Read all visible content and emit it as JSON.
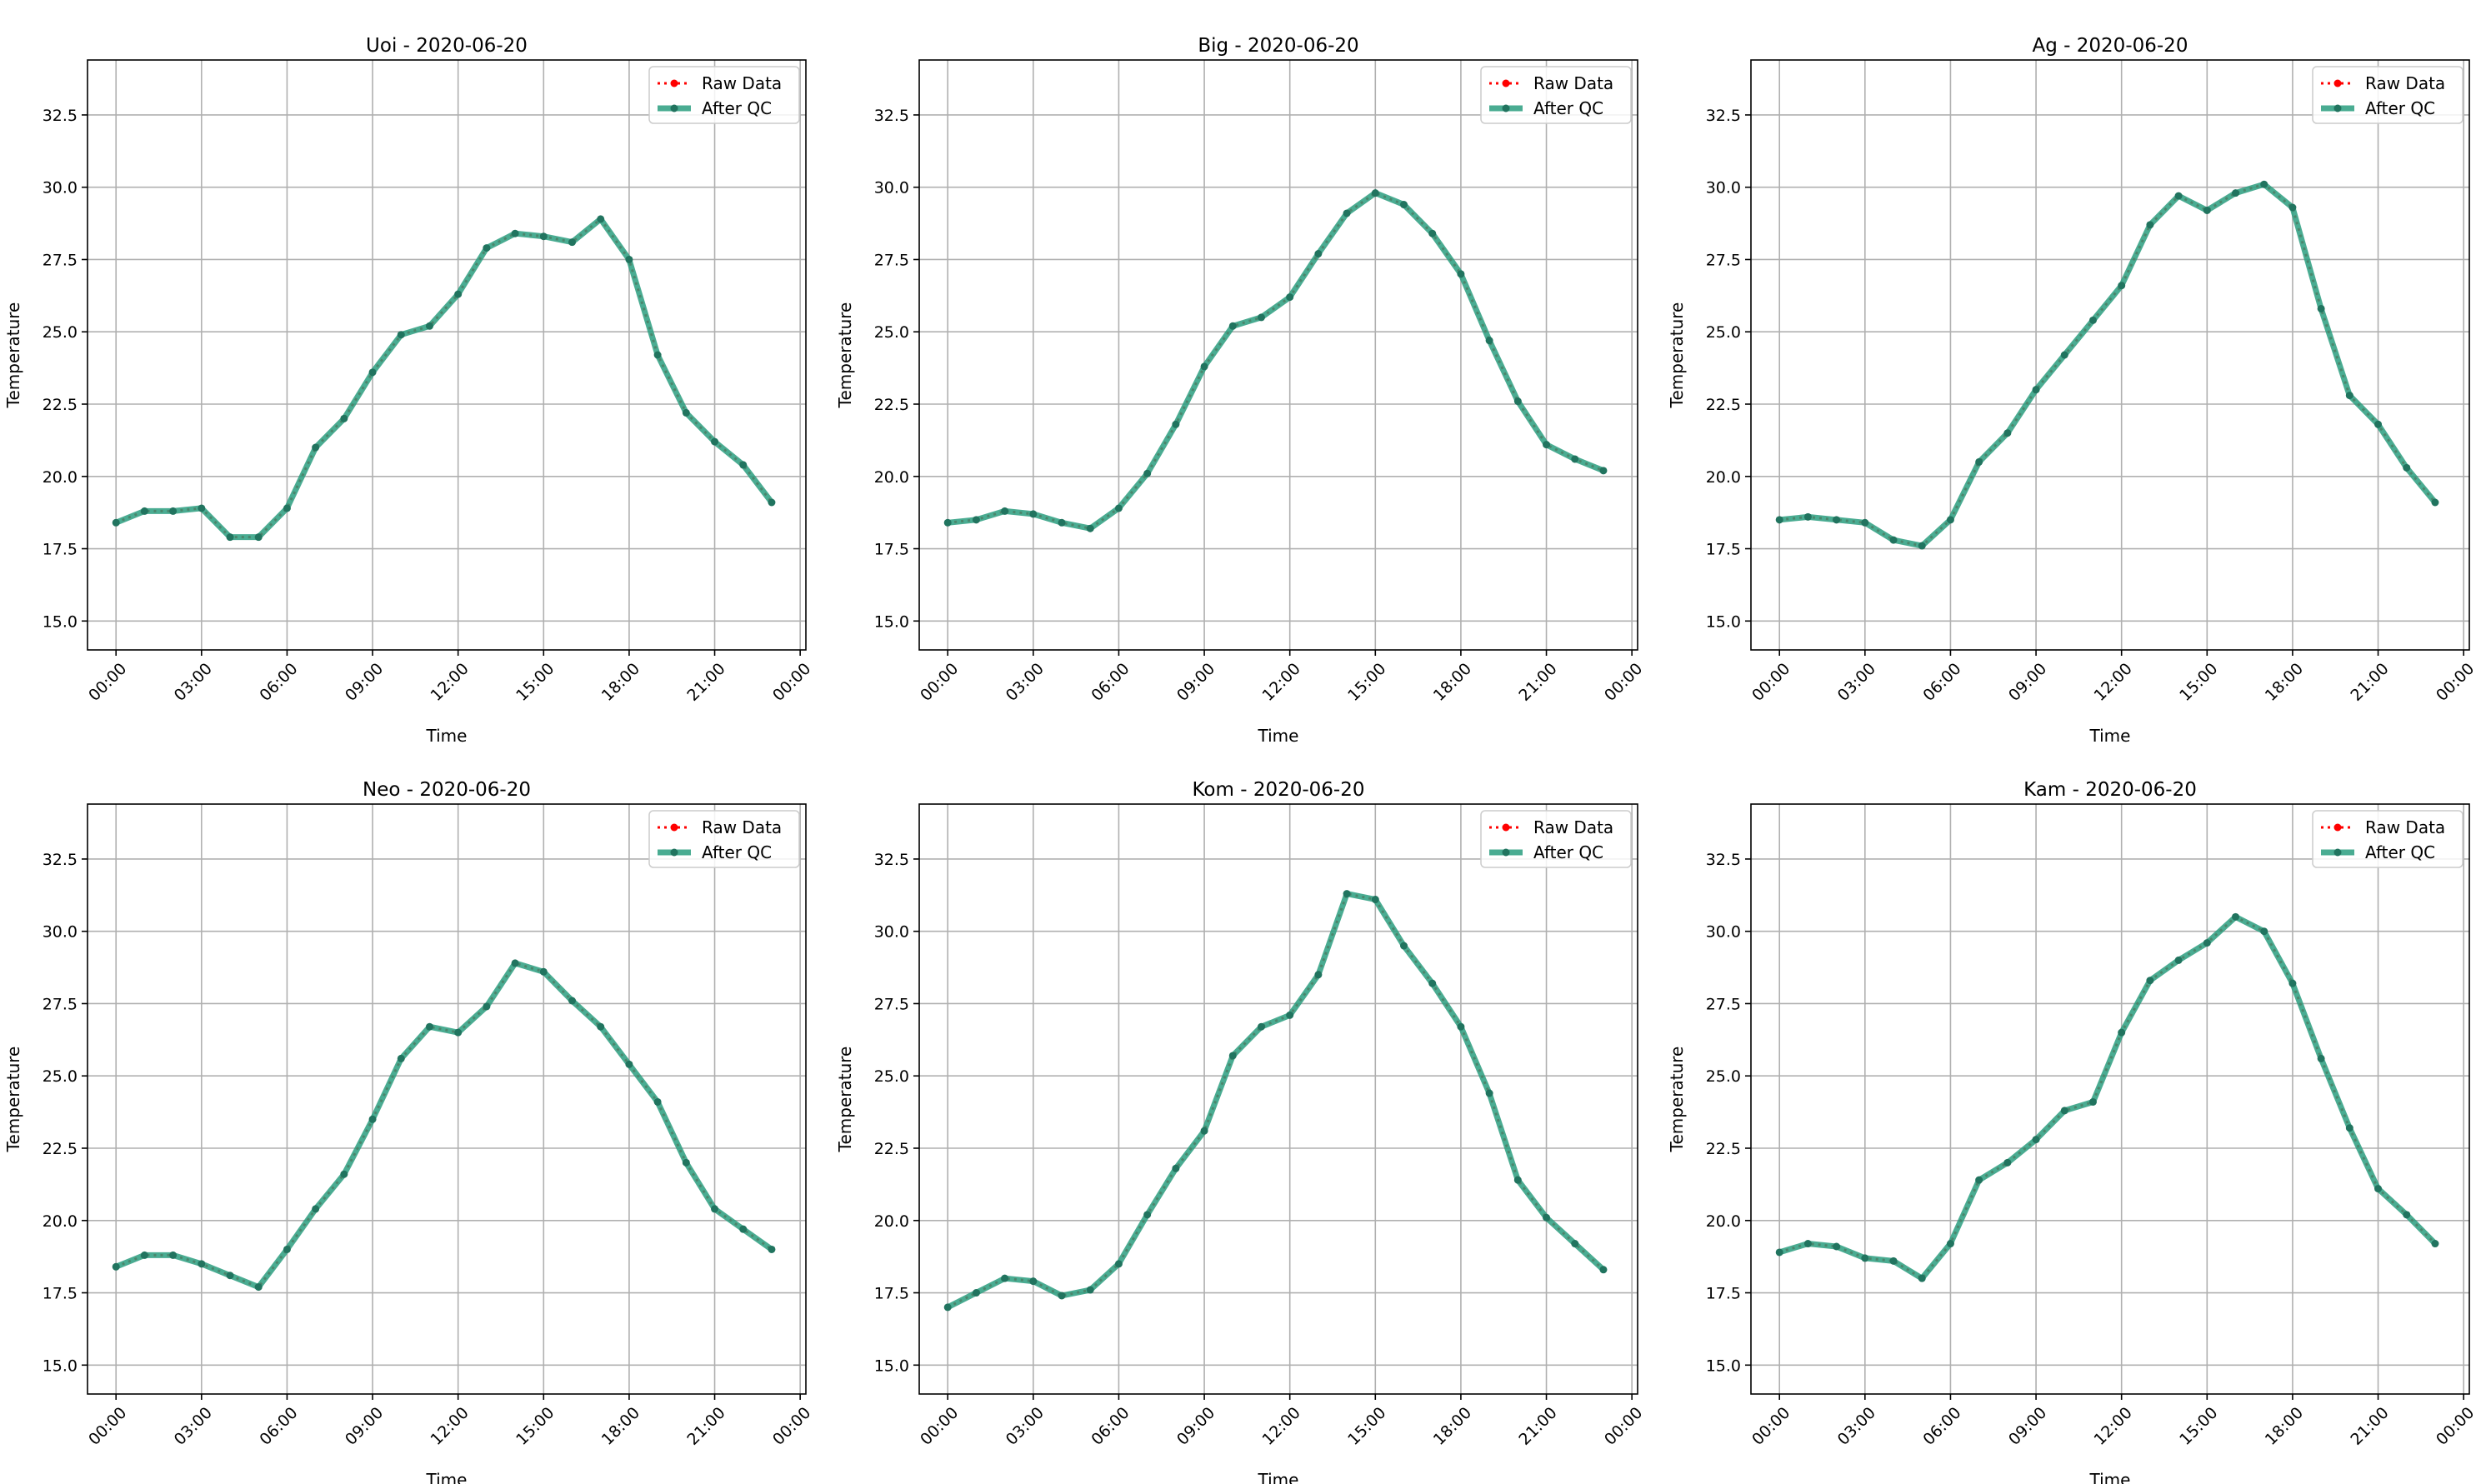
{
  "chart_data": [
    {
      "type": "line",
      "title": "Uoi - 2020-06-20",
      "xlabel": "Time",
      "ylabel": "Temperature",
      "ylim": [
        14.0,
        34.4
      ],
      "xlim": [
        -1.0,
        24.2
      ],
      "yticks": [
        "15.0",
        "17.5",
        "20.0",
        "22.5",
        "25.0",
        "27.5",
        "30.0",
        "32.5"
      ],
      "xticks": [
        "00:00",
        "03:00",
        "06:00",
        "09:00",
        "12:00",
        "15:00",
        "18:00",
        "21:00",
        "00:00"
      ],
      "grid": true,
      "legend_position": "top-right",
      "x": [
        0,
        1,
        2,
        3,
        4,
        5,
        6,
        7,
        8,
        9,
        10,
        11,
        12,
        13,
        14,
        15,
        16,
        17,
        18,
        19,
        20,
        21,
        22,
        23
      ],
      "series": [
        {
          "name": "Raw Data",
          "color": "#ff0000",
          "values": [
            18.4,
            18.8,
            18.8,
            18.9,
            17.9,
            17.9,
            18.9,
            21.0,
            22.0,
            23.6,
            24.9,
            25.2,
            26.3,
            27.9,
            28.4,
            28.3,
            28.1,
            28.9,
            27.5,
            24.2,
            22.2,
            21.2,
            20.4,
            19.1
          ]
        },
        {
          "name": "After QC",
          "color": "#2a9d7f",
          "values": [
            18.4,
            18.8,
            18.8,
            18.9,
            17.9,
            17.9,
            18.9,
            21.0,
            22.0,
            23.6,
            24.9,
            25.2,
            26.3,
            27.9,
            28.4,
            28.3,
            28.1,
            28.9,
            27.5,
            24.2,
            22.2,
            21.2,
            20.4,
            19.1
          ]
        }
      ]
    },
    {
      "type": "line",
      "title": "Big - 2020-06-20",
      "xlabel": "Time",
      "ylabel": "Temperature",
      "ylim": [
        14.0,
        34.4
      ],
      "xlim": [
        -1.0,
        24.2
      ],
      "yticks": [
        "15.0",
        "17.5",
        "20.0",
        "22.5",
        "25.0",
        "27.5",
        "30.0",
        "32.5"
      ],
      "xticks": [
        "00:00",
        "03:00",
        "06:00",
        "09:00",
        "12:00",
        "15:00",
        "18:00",
        "21:00",
        "00:00"
      ],
      "grid": true,
      "legend_position": "top-right",
      "x": [
        0,
        1,
        2,
        3,
        4,
        5,
        6,
        7,
        8,
        9,
        10,
        11,
        12,
        13,
        14,
        15,
        16,
        17,
        18,
        19,
        20,
        21,
        22,
        23
      ],
      "series": [
        {
          "name": "Raw Data",
          "color": "#ff0000",
          "values": [
            18.4,
            18.5,
            18.8,
            18.7,
            18.4,
            18.2,
            18.9,
            20.1,
            21.8,
            23.8,
            25.2,
            25.5,
            26.2,
            27.7,
            29.1,
            29.8,
            29.4,
            28.4,
            27.0,
            24.7,
            22.6,
            21.1,
            20.6,
            20.2
          ]
        },
        {
          "name": "After QC",
          "color": "#2a9d7f",
          "values": [
            18.4,
            18.5,
            18.8,
            18.7,
            18.4,
            18.2,
            18.9,
            20.1,
            21.8,
            23.8,
            25.2,
            25.5,
            26.2,
            27.7,
            29.1,
            29.8,
            29.4,
            28.4,
            27.0,
            24.7,
            22.6,
            21.1,
            20.6,
            20.2
          ]
        }
      ]
    },
    {
      "type": "line",
      "title": "Ag - 2020-06-20",
      "xlabel": "Time",
      "ylabel": "Temperature",
      "ylim": [
        14.0,
        34.4
      ],
      "xlim": [
        -1.0,
        24.2
      ],
      "yticks": [
        "15.0",
        "17.5",
        "20.0",
        "22.5",
        "25.0",
        "27.5",
        "30.0",
        "32.5"
      ],
      "xticks": [
        "00:00",
        "03:00",
        "06:00",
        "09:00",
        "12:00",
        "15:00",
        "18:00",
        "21:00",
        "00:00"
      ],
      "grid": true,
      "legend_position": "top-right",
      "x": [
        0,
        1,
        2,
        3,
        4,
        5,
        6,
        7,
        8,
        9,
        10,
        11,
        12,
        13,
        14,
        15,
        16,
        17,
        18,
        19,
        20,
        21,
        22,
        23
      ],
      "series": [
        {
          "name": "Raw Data",
          "color": "#ff0000",
          "values": [
            18.5,
            18.6,
            18.5,
            18.4,
            17.8,
            17.6,
            18.5,
            20.5,
            21.5,
            23.0,
            24.2,
            25.4,
            26.6,
            28.7,
            29.7,
            29.2,
            29.8,
            30.1,
            29.3,
            25.8,
            22.8,
            21.8,
            20.3,
            19.1
          ]
        },
        {
          "name": "After QC",
          "color": "#2a9d7f",
          "values": [
            18.5,
            18.6,
            18.5,
            18.4,
            17.8,
            17.6,
            18.5,
            20.5,
            21.5,
            23.0,
            24.2,
            25.4,
            26.6,
            28.7,
            29.7,
            29.2,
            29.8,
            30.1,
            29.3,
            25.8,
            22.8,
            21.8,
            20.3,
            19.1
          ]
        }
      ]
    },
    {
      "type": "line",
      "title": "Neo - 2020-06-20",
      "xlabel": "Time",
      "ylabel": "Temperature",
      "ylim": [
        14.0,
        34.4
      ],
      "xlim": [
        -1.0,
        24.2
      ],
      "yticks": [
        "15.0",
        "17.5",
        "20.0",
        "22.5",
        "25.0",
        "27.5",
        "30.0",
        "32.5"
      ],
      "xticks": [
        "00:00",
        "03:00",
        "06:00",
        "09:00",
        "12:00",
        "15:00",
        "18:00",
        "21:00",
        "00:00"
      ],
      "grid": true,
      "legend_position": "top-right",
      "x": [
        0,
        1,
        2,
        3,
        4,
        5,
        6,
        7,
        8,
        9,
        10,
        11,
        12,
        13,
        14,
        15,
        16,
        17,
        18,
        19,
        20,
        21,
        22,
        23
      ],
      "series": [
        {
          "name": "Raw Data",
          "color": "#ff0000",
          "values": [
            18.4,
            18.8,
            18.8,
            18.5,
            18.1,
            17.7,
            19.0,
            20.4,
            21.6,
            23.5,
            25.6,
            26.7,
            26.5,
            27.4,
            28.9,
            28.6,
            27.6,
            26.7,
            25.4,
            24.1,
            22.0,
            20.4,
            19.7,
            19.0
          ]
        },
        {
          "name": "After QC",
          "color": "#2a9d7f",
          "values": [
            18.4,
            18.8,
            18.8,
            18.5,
            18.1,
            17.7,
            19.0,
            20.4,
            21.6,
            23.5,
            25.6,
            26.7,
            26.5,
            27.4,
            28.9,
            28.6,
            27.6,
            26.7,
            25.4,
            24.1,
            22.0,
            20.4,
            19.7,
            19.0
          ]
        }
      ]
    },
    {
      "type": "line",
      "title": "Kom - 2020-06-20",
      "xlabel": "Time",
      "ylabel": "Temperature",
      "ylim": [
        14.0,
        34.4
      ],
      "xlim": [
        -1.0,
        24.2
      ],
      "yticks": [
        "15.0",
        "17.5",
        "20.0",
        "22.5",
        "25.0",
        "27.5",
        "30.0",
        "32.5"
      ],
      "xticks": [
        "00:00",
        "03:00",
        "06:00",
        "09:00",
        "12:00",
        "15:00",
        "18:00",
        "21:00",
        "00:00"
      ],
      "grid": true,
      "legend_position": "top-right",
      "x": [
        0,
        1,
        2,
        3,
        4,
        5,
        6,
        7,
        8,
        9,
        10,
        11,
        12,
        13,
        14,
        15,
        16,
        17,
        18,
        19,
        20,
        21,
        22,
        23
      ],
      "series": [
        {
          "name": "Raw Data",
          "color": "#ff0000",
          "values": [
            17.0,
            17.5,
            18.0,
            17.9,
            17.4,
            17.6,
            18.5,
            20.2,
            21.8,
            23.1,
            25.7,
            26.7,
            27.1,
            28.5,
            31.3,
            31.1,
            29.5,
            28.2,
            26.7,
            24.4,
            21.4,
            20.1,
            19.2,
            18.3
          ]
        },
        {
          "name": "After QC",
          "color": "#2a9d7f",
          "values": [
            17.0,
            17.5,
            18.0,
            17.9,
            17.4,
            17.6,
            18.5,
            20.2,
            21.8,
            23.1,
            25.7,
            26.7,
            27.1,
            28.5,
            31.3,
            31.1,
            29.5,
            28.2,
            26.7,
            24.4,
            21.4,
            20.1,
            19.2,
            18.3
          ]
        }
      ]
    },
    {
      "type": "line",
      "title": "Kam - 2020-06-20",
      "xlabel": "Time",
      "ylabel": "Temperature",
      "ylim": [
        14.0,
        34.4
      ],
      "xlim": [
        -1.0,
        24.2
      ],
      "yticks": [
        "15.0",
        "17.5",
        "20.0",
        "22.5",
        "25.0",
        "27.5",
        "30.0",
        "32.5"
      ],
      "xticks": [
        "00:00",
        "03:00",
        "06:00",
        "09:00",
        "12:00",
        "15:00",
        "18:00",
        "21:00",
        "00:00"
      ],
      "grid": true,
      "legend_position": "top-right",
      "x": [
        0,
        1,
        2,
        3,
        4,
        5,
        6,
        7,
        8,
        9,
        10,
        11,
        12,
        13,
        14,
        15,
        16,
        17,
        18,
        19,
        20,
        21,
        22,
        23
      ],
      "series": [
        {
          "name": "Raw Data",
          "color": "#ff0000",
          "values": [
            18.9,
            19.2,
            19.1,
            18.7,
            18.6,
            18.0,
            19.2,
            21.4,
            22.0,
            22.8,
            23.8,
            24.1,
            26.5,
            28.3,
            29.0,
            29.6,
            30.5,
            30.0,
            28.2,
            25.6,
            23.2,
            21.1,
            20.2,
            19.2
          ]
        },
        {
          "name": "After QC",
          "color": "#2a9d7f",
          "values": [
            18.9,
            19.2,
            19.1,
            18.7,
            18.6,
            18.0,
            19.2,
            21.4,
            22.0,
            22.8,
            23.8,
            24.1,
            26.5,
            28.3,
            29.0,
            29.6,
            30.5,
            30.0,
            28.2,
            25.6,
            23.2,
            21.1,
            20.2,
            19.2
          ]
        }
      ]
    }
  ]
}
